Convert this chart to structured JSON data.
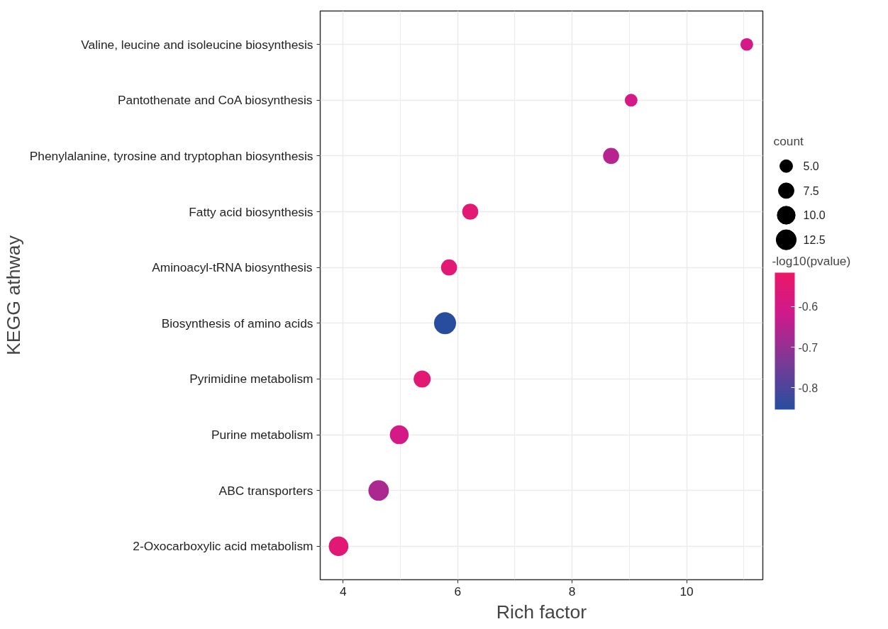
{
  "chart_data": {
    "type": "bubble",
    "xlabel": "Rich factor",
    "ylabel": "KEGG athway",
    "legend_title": "count",
    "clabel": "-log10(pvalue)",
    "categories": [
      "Valine, leucine and isoleucine biosynthesis",
      "Pantothenate and CoA biosynthesis",
      "Phenylalanine, tyrosine and tryptophan biosynthesis",
      "Fatty acid biosynthesis",
      "Aminoacyl-tRNA biosynthesis",
      "Biosynthesis of amino acids",
      "Pyrimidine metabolism",
      "Purine metabolism",
      "ABC transporters",
      "2-Oxocarboxylic acid metabolism"
    ],
    "values": [
      11.05,
      9.03,
      8.68,
      6.22,
      5.85,
      5.78,
      5.38,
      4.98,
      4.62,
      3.92
    ],
    "sizes": [
      5,
      5,
      8,
      8,
      8,
      15,
      9,
      11,
      13,
      12
    ],
    "size_legend": [
      {
        "value": 5,
        "label": "5.0"
      },
      {
        "value": 7.5,
        "label": "7.5"
      },
      {
        "value": 10,
        "label": "10.0"
      },
      {
        "value": 12.5,
        "label": "12.5"
      }
    ],
    "cvalues": [
      -0.6,
      -0.6,
      -0.65,
      -0.55,
      -0.55,
      -0.85,
      -0.55,
      -0.6,
      -0.67,
      -0.55
    ],
    "clim": [
      -0.854,
      -0.516
    ],
    "cticks": [
      -0.8,
      -0.7,
      -0.6
    ],
    "orientation": "horizontal",
    "xlim": [
      3.6,
      11.33
    ],
    "xticks": [
      4,
      6,
      8,
      10
    ],
    "grid": true
  }
}
